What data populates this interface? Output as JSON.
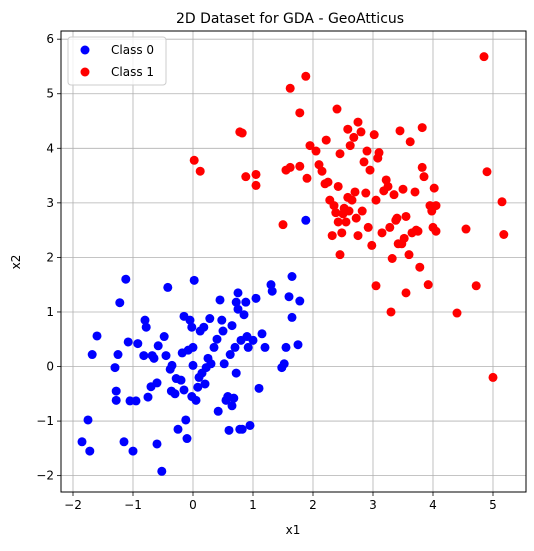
{
  "chart_data": {
    "type": "scatter",
    "title": "2D Dataset for GDA - GeoAtticus",
    "xlabel": "x1",
    "ylabel": "x2",
    "xlim": [
      -2.2,
      5.55
    ],
    "ylim": [
      -2.3,
      6.15
    ],
    "xticks": [
      -2,
      -1,
      0,
      1,
      2,
      3,
      4,
      5
    ],
    "yticks": [
      -2,
      -1,
      0,
      1,
      2,
      3,
      4,
      5,
      6
    ],
    "grid": true,
    "legend_position": "top-left",
    "series": [
      {
        "name": "Class 0",
        "color": "#0000ff",
        "points": [
          [
            -1.85,
            -1.38
          ],
          [
            -1.75,
            -0.98
          ],
          [
            -1.72,
            -1.55
          ],
          [
            -1.68,
            0.22
          ],
          [
            -1.6,
            0.56
          ],
          [
            -1.3,
            -0.02
          ],
          [
            -1.28,
            -0.45
          ],
          [
            -1.28,
            -0.62
          ],
          [
            -1.25,
            0.22
          ],
          [
            -1.22,
            1.17
          ],
          [
            -1.15,
            -1.38
          ],
          [
            -1.12,
            1.6
          ],
          [
            -1.08,
            0.45
          ],
          [
            -1.05,
            -0.63
          ],
          [
            -1.0,
            -1.55
          ],
          [
            -0.95,
            -0.63
          ],
          [
            -0.92,
            0.42
          ],
          [
            -0.82,
            0.2
          ],
          [
            -0.8,
            0.85
          ],
          [
            -0.78,
            0.72
          ],
          [
            -0.75,
            -0.56
          ],
          [
            -0.7,
            -0.37
          ],
          [
            -0.68,
            0.2
          ],
          [
            -0.65,
            0.15
          ],
          [
            -0.6,
            -1.42
          ],
          [
            -0.6,
            -0.3
          ],
          [
            -0.58,
            0.38
          ],
          [
            -0.52,
            -1.92
          ],
          [
            -0.48,
            0.55
          ],
          [
            -0.45,
            0.2
          ],
          [
            -0.42,
            1.45
          ],
          [
            -0.38,
            -0.05
          ],
          [
            -0.36,
            -0.45
          ],
          [
            -0.35,
            0.02
          ],
          [
            -0.3,
            -0.5
          ],
          [
            -0.28,
            -0.22
          ],
          [
            -0.25,
            -1.15
          ],
          [
            -0.2,
            -0.25
          ],
          [
            -0.18,
            0.25
          ],
          [
            -0.15,
            -0.43
          ],
          [
            -0.15,
            0.92
          ],
          [
            -0.12,
            -0.98
          ],
          [
            -0.1,
            -1.32
          ],
          [
            -0.08,
            0.3
          ],
          [
            -0.05,
            0.85
          ],
          [
            -0.02,
            0.72
          ],
          [
            -0.02,
            -0.55
          ],
          [
            0.0,
            0.02
          ],
          [
            0.0,
            0.35
          ],
          [
            0.02,
            1.58
          ],
          [
            0.05,
            -0.62
          ],
          [
            0.08,
            -0.38
          ],
          [
            0.1,
            -0.2
          ],
          [
            0.12,
            0.65
          ],
          [
            0.15,
            -0.12
          ],
          [
            0.18,
            0.72
          ],
          [
            0.2,
            -0.32
          ],
          [
            0.22,
            -0.02
          ],
          [
            0.25,
            0.15
          ],
          [
            0.28,
            0.88
          ],
          [
            0.3,
            0.05
          ],
          [
            0.35,
            0.35
          ],
          [
            0.4,
            0.5
          ],
          [
            0.42,
            -0.82
          ],
          [
            0.45,
            1.22
          ],
          [
            0.48,
            0.85
          ],
          [
            0.5,
            0.65
          ],
          [
            0.52,
            0.05
          ],
          [
            0.55,
            -0.62
          ],
          [
            0.58,
            -0.55
          ],
          [
            0.6,
            -1.17
          ],
          [
            0.62,
            0.22
          ],
          [
            0.65,
            -0.72
          ],
          [
            0.65,
            0.75
          ],
          [
            0.68,
            -0.58
          ],
          [
            0.7,
            0.35
          ],
          [
            0.72,
            -0.12
          ],
          [
            0.72,
            1.18
          ],
          [
            0.75,
            1.05
          ],
          [
            0.75,
            1.35
          ],
          [
            0.78,
            -1.15
          ],
          [
            0.8,
            0.48
          ],
          [
            0.82,
            -1.15
          ],
          [
            0.85,
            0.95
          ],
          [
            0.88,
            1.18
          ],
          [
            0.9,
            0.55
          ],
          [
            0.92,
            0.35
          ],
          [
            0.95,
            -1.08
          ],
          [
            1.0,
            0.48
          ],
          [
            1.05,
            1.25
          ],
          [
            1.1,
            -0.4
          ],
          [
            1.15,
            0.6
          ],
          [
            1.2,
            0.35
          ],
          [
            1.3,
            1.5
          ],
          [
            1.32,
            1.38
          ],
          [
            1.48,
            -0.02
          ],
          [
            1.52,
            0.05
          ],
          [
            1.55,
            0.35
          ],
          [
            1.6,
            1.28
          ],
          [
            1.65,
            1.65
          ],
          [
            1.65,
            0.9
          ],
          [
            1.75,
            0.4
          ],
          [
            1.78,
            1.2
          ],
          [
            1.88,
            2.68
          ]
        ]
      },
      {
        "name": "Class 1",
        "color": "#ff0000",
        "points": [
          [
            0.02,
            3.78
          ],
          [
            0.12,
            3.58
          ],
          [
            0.78,
            4.3
          ],
          [
            0.82,
            4.28
          ],
          [
            0.88,
            3.48
          ],
          [
            1.05,
            3.52
          ],
          [
            1.05,
            3.32
          ],
          [
            1.5,
            2.6
          ],
          [
            1.55,
            3.6
          ],
          [
            1.62,
            3.65
          ],
          [
            1.62,
            5.1
          ],
          [
            1.78,
            4.65
          ],
          [
            1.78,
            3.67
          ],
          [
            1.88,
            5.32
          ],
          [
            1.9,
            3.45
          ],
          [
            1.95,
            4.05
          ],
          [
            2.05,
            3.95
          ],
          [
            2.1,
            3.7
          ],
          [
            2.15,
            3.58
          ],
          [
            2.2,
            3.35
          ],
          [
            2.22,
            4.15
          ],
          [
            2.25,
            3.38
          ],
          [
            2.28,
            3.05
          ],
          [
            2.32,
            2.4
          ],
          [
            2.35,
            2.95
          ],
          [
            2.38,
            2.82
          ],
          [
            2.4,
            4.72
          ],
          [
            2.42,
            2.65
          ],
          [
            2.42,
            3.3
          ],
          [
            2.45,
            2.05
          ],
          [
            2.45,
            3.9
          ],
          [
            2.48,
            2.45
          ],
          [
            2.5,
            2.8
          ],
          [
            2.52,
            2.9
          ],
          [
            2.55,
            2.65
          ],
          [
            2.58,
            3.1
          ],
          [
            2.58,
            4.35
          ],
          [
            2.6,
            2.85
          ],
          [
            2.62,
            4.05
          ],
          [
            2.65,
            3.05
          ],
          [
            2.68,
            4.2
          ],
          [
            2.7,
            3.2
          ],
          [
            2.72,
            2.72
          ],
          [
            2.75,
            4.48
          ],
          [
            2.75,
            2.4
          ],
          [
            2.8,
            4.3
          ],
          [
            2.82,
            2.85
          ],
          [
            2.85,
            3.75
          ],
          [
            2.88,
            3.18
          ],
          [
            2.9,
            3.95
          ],
          [
            2.92,
            2.55
          ],
          [
            2.95,
            3.6
          ],
          [
            2.98,
            2.22
          ],
          [
            3.02,
            4.25
          ],
          [
            3.05,
            1.48
          ],
          [
            3.05,
            3.05
          ],
          [
            3.08,
            3.82
          ],
          [
            3.1,
            3.92
          ],
          [
            3.15,
            2.45
          ],
          [
            3.18,
            3.22
          ],
          [
            3.22,
            3.42
          ],
          [
            3.25,
            3.3
          ],
          [
            3.28,
            2.55
          ],
          [
            3.3,
            1.0
          ],
          [
            3.32,
            1.98
          ],
          [
            3.35,
            3.15
          ],
          [
            3.38,
            2.68
          ],
          [
            3.4,
            2.72
          ],
          [
            3.42,
            2.25
          ],
          [
            3.45,
            4.32
          ],
          [
            3.48,
            2.25
          ],
          [
            3.5,
            3.25
          ],
          [
            3.52,
            2.35
          ],
          [
            3.55,
            2.75
          ],
          [
            3.55,
            1.35
          ],
          [
            3.6,
            2.05
          ],
          [
            3.62,
            4.12
          ],
          [
            3.65,
            2.45
          ],
          [
            3.7,
            3.2
          ],
          [
            3.72,
            2.5
          ],
          [
            3.75,
            2.48
          ],
          [
            3.78,
            1.82
          ],
          [
            3.82,
            3.65
          ],
          [
            3.82,
            4.38
          ],
          [
            3.85,
            3.48
          ],
          [
            3.92,
            1.5
          ],
          [
            3.95,
            2.95
          ],
          [
            3.98,
            2.85
          ],
          [
            4.0,
            2.55
          ],
          [
            4.02,
            3.27
          ],
          [
            4.05,
            2.95
          ],
          [
            4.05,
            2.48
          ],
          [
            4.4,
            0.98
          ],
          [
            4.55,
            2.52
          ],
          [
            4.72,
            1.48
          ],
          [
            4.85,
            5.68
          ],
          [
            4.9,
            3.57
          ],
          [
            5.0,
            -0.2
          ],
          [
            5.15,
            3.02
          ],
          [
            5.18,
            2.42
          ]
        ]
      }
    ]
  }
}
